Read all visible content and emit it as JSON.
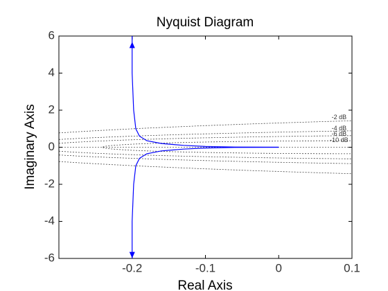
{
  "chart_data": {
    "type": "nyquist",
    "title": "Nyquist Diagram",
    "x_label": "Real Axis",
    "y_label": "Imaginary Axis",
    "xlim": [
      -0.3,
      0.1
    ],
    "xticks": [
      -0.2,
      -0.1,
      0,
      0.1
    ],
    "ylim": [
      -6,
      6
    ],
    "yticks": [
      -6,
      -4,
      -2,
      0,
      2,
      4,
      6
    ],
    "series": [
      {
        "color": "#0000ff",
        "x": [
          0,
          -0.06,
          -0.1,
          -0.13,
          -0.16,
          -0.18,
          -0.19,
          -0.195,
          -0.198,
          -0.2,
          -0.2
        ],
        "y": [
          0,
          0.01,
          0.04,
          0.1,
          0.2,
          0.35,
          0.6,
          1,
          2,
          4,
          6
        ]
      },
      {
        "color": "#0000ff",
        "x": [
          0,
          -0.06,
          -0.1,
          -0.13,
          -0.16,
          -0.18,
          -0.19,
          -0.195,
          -0.198,
          -0.2,
          -0.2
        ],
        "y": [
          0,
          -0.01,
          -0.04,
          -0.1,
          -0.2,
          -0.35,
          -0.6,
          -1,
          -2,
          -4,
          -6
        ]
      }
    ],
    "arrows": [
      {
        "x": -0.2,
        "y": 5.5,
        "direction": "up"
      },
      {
        "x": -0.2,
        "y": -5.8,
        "direction": "down"
      }
    ],
    "m_circles": [
      {
        "value": -2,
        "label": "-2 dB"
      },
      {
        "value": -4,
        "label": "-4 dB"
      },
      {
        "value": -6,
        "label": "-6 dB"
      },
      {
        "value": -10,
        "label": "-10 dB"
      }
    ]
  }
}
